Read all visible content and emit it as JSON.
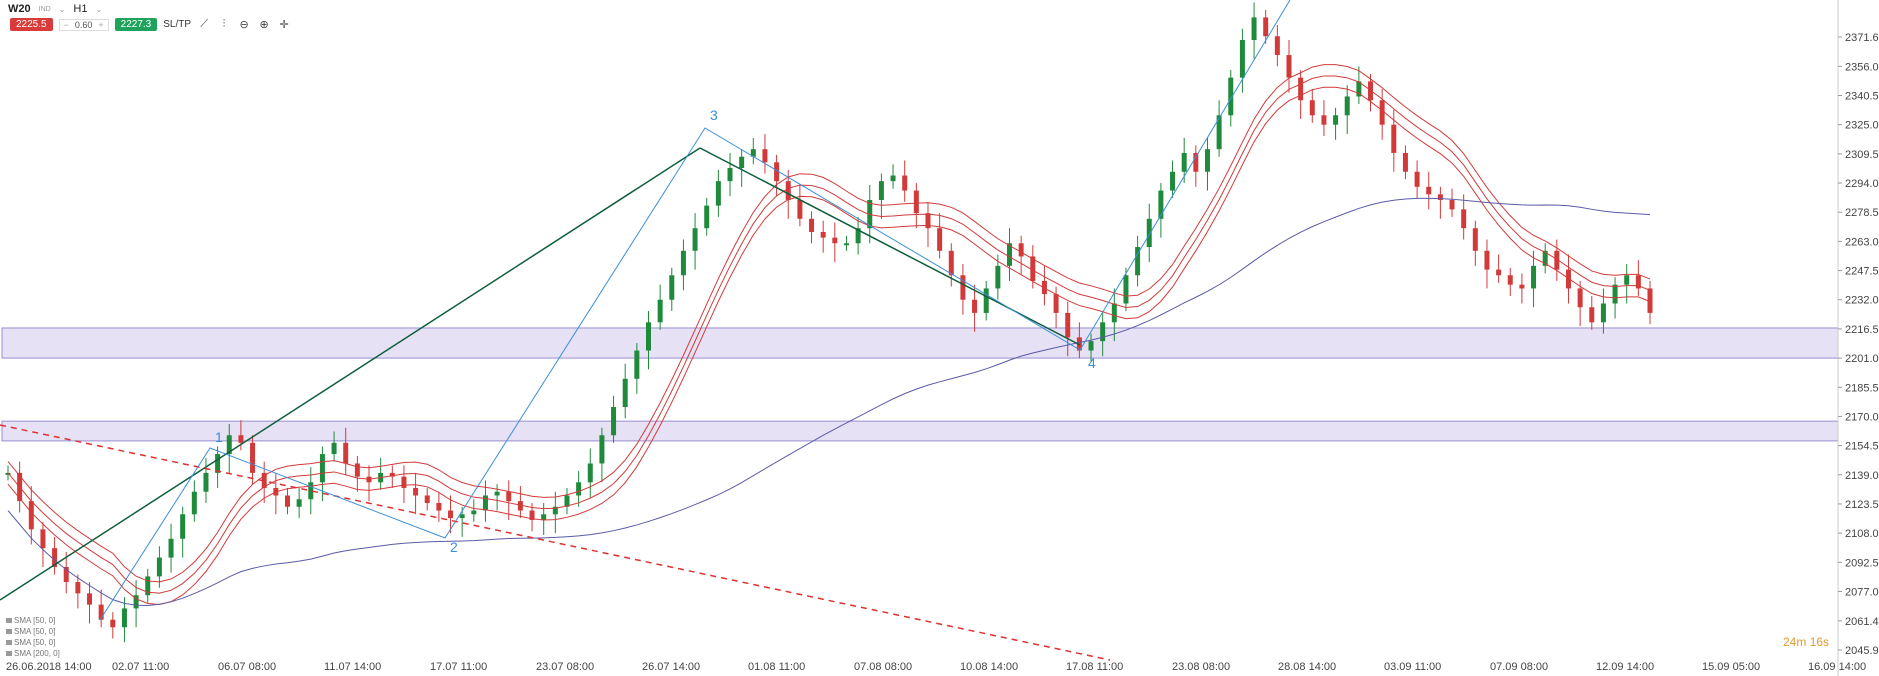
{
  "header": {
    "symbol": "W20",
    "symbol_sub": "IND",
    "timeframe": "H1"
  },
  "trade": {
    "sell": "2225.5",
    "qty": "0.60",
    "buy": "2227.3",
    "sltp": "SL/TP"
  },
  "toolbar_icons": [
    "line-chart-icon",
    "indicators-icon",
    "zoom-out-icon",
    "zoom-in-icon",
    "crosshair-icon"
  ],
  "indicators": [
    "SMA [50, 0]",
    "SMA [50, 0]",
    "SMA [50, 0]",
    "SMA [200, 0]"
  ],
  "timer": {
    "m": "24m",
    "s": "16s"
  },
  "colors": {
    "up": "#1f8a3b",
    "down": "#d23a3a",
    "sma": "#d23a3a",
    "sma200": "#5b5ba8",
    "zone": "#e6e1f5",
    "trend": "#0d5e3a",
    "wave": "#3a8fd8",
    "dashed": "#e03030"
  },
  "chart_data": {
    "type": "candlestick",
    "y_ticks": [
      "2371.6",
      "2356.0",
      "2340.5",
      "2325.0",
      "2309.5",
      "2294.0",
      "2278.5",
      "2263.0",
      "2247.5",
      "2232.0",
      "2216.5",
      "2201.0",
      "2185.5",
      "2170.0",
      "2154.5",
      "2139.0",
      "2123.5",
      "2108.0",
      "2092.5",
      "2077.0",
      "2061.4",
      "2045.9"
    ],
    "x_ticks": [
      "26.06.2018 14:00",
      "02.07 11:00",
      "06.07 08:00",
      "11.07 14:00",
      "17.07 11:00",
      "23.07 08:00",
      "26.07 14:00",
      "01.08 11:00",
      "07.08 08:00",
      "10.08 14:00",
      "17.08 11:00",
      "23.08 08:00",
      "28.08 14:00",
      "03.09 11:00",
      "07.09 08:00",
      "12.09 14:00",
      "15.09 05:00",
      "16.09 14:00"
    ],
    "ylim": [
      2045.9,
      2387
    ],
    "zones": [
      [
        2201.0,
        2217.0
      ],
      [
        2157.0,
        2167.5
      ]
    ],
    "wave_labels": [
      "1",
      "2",
      "3",
      "4"
    ],
    "close_path": [
      2140,
      2125,
      2110,
      2100,
      2090,
      2082,
      2076,
      2070,
      2062,
      2058,
      2068,
      2075,
      2085,
      2095,
      2105,
      2118,
      2130,
      2140,
      2150,
      2160,
      2156,
      2140,
      2132,
      2128,
      2122,
      2126,
      2135,
      2150,
      2156,
      2145,
      2138,
      2135,
      2140,
      2138,
      2132,
      2128,
      2124,
      2120,
      2116,
      2118,
      2120,
      2128,
      2130,
      2125,
      2120,
      2115,
      2118,
      2122,
      2128,
      2135,
      2145,
      2160,
      2175,
      2190,
      2205,
      2220,
      2232,
      2245,
      2258,
      2270,
      2282,
      2295,
      2302,
      2308,
      2312,
      2305,
      2295,
      2285,
      2275,
      2268,
      2265,
      2262,
      2262,
      2270,
      2285,
      2295,
      2298,
      2290,
      2278,
      2270,
      2258,
      2245,
      2232,
      2225,
      2238,
      2250,
      2262,
      2255,
      2242,
      2235,
      2225,
      2212,
      2205,
      2210,
      2220,
      2230,
      2245,
      2260,
      2275,
      2290,
      2300,
      2310,
      2300,
      2312,
      2330,
      2350,
      2370,
      2382,
      2372,
      2362,
      2350,
      2338,
      2330,
      2325,
      2330,
      2340,
      2348,
      2338,
      2325,
      2310,
      2300,
      2292,
      2288,
      2285,
      2280,
      2270,
      2258,
      2248,
      2245,
      2240,
      2238,
      2250,
      2258,
      2248,
      2238,
      2228,
      2220,
      2230,
      2240,
      2245,
      2238,
      2225
    ]
  }
}
